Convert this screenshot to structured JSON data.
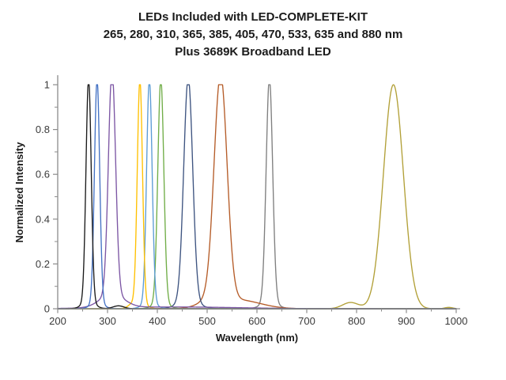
{
  "page": {
    "background": "#FFFFFF"
  },
  "chart_data": {
    "type": "line",
    "title_lines": [
      "LEDs Included with LED-COMPLETE-KIT",
      "265, 280, 310, 365, 385, 405, 470, 533, 635 and 880 nm",
      "Plus 3689K Broadband LED"
    ],
    "xlabel": "Wavelength (nm)",
    "ylabel": "Normalized Intensity",
    "xlim": [
      200,
      1000
    ],
    "ylim": [
      0,
      1
    ],
    "grid": false,
    "legend_position": "none",
    "axis_color": "#8C8C8C",
    "tick_label_color": "#3A3A3A",
    "x_major_ticks": [
      200,
      300,
      400,
      500,
      600,
      700,
      800,
      900,
      1000
    ],
    "x_minor_ticks": [
      250,
      350,
      450,
      550,
      650,
      750,
      850,
      950
    ],
    "y_major_ticks": [
      {
        "value": 0,
        "label": "0"
      },
      {
        "value": 0.2,
        "label": "0.2"
      },
      {
        "value": 0.4,
        "label": "0.4"
      },
      {
        "value": 0.6,
        "label": "0.6"
      },
      {
        "value": 0.8,
        "label": "0.8"
      },
      {
        "value": 1,
        "label": "1"
      }
    ],
    "y_minor_ticks": [
      0.1,
      0.3,
      0.5,
      0.7,
      0.9
    ],
    "series": [
      {
        "name": "265 nm LED",
        "nominal_nm": 265,
        "peak_intensity": 1.0,
        "fwhm_nm": 12,
        "color": "#1A1A1A",
        "components": [
          [
            262,
            5.2,
            1.0
          ],
          [
            262,
            13,
            0.03
          ],
          [
            322,
            11,
            0.013
          ]
        ]
      },
      {
        "name": "280 nm LED",
        "nominal_nm": 280,
        "peak_intensity": 1.0,
        "fwhm_nm": 12,
        "color": "#4472C4",
        "components": [
          [
            279,
            5.2,
            1.0
          ],
          [
            279,
            13,
            0.025
          ]
        ]
      },
      {
        "name": "310 nm LED",
        "nominal_nm": 310,
        "peak_intensity": 1.0,
        "fwhm_nm": 17,
        "color": "#7C56A4",
        "components": [
          [
            309,
            7.2,
            1.0
          ],
          [
            309,
            24,
            0.06
          ],
          [
            430,
            130,
            0.008
          ]
        ]
      },
      {
        "name": "365 nm LED",
        "nominal_nm": 365,
        "peak_intensity": 1.0,
        "fwhm_nm": 12,
        "color": "#FFC000",
        "components": [
          [
            365,
            5.2,
            1.0
          ],
          [
            349,
            8,
            0.015
          ],
          [
            365,
            13,
            0.02
          ]
        ]
      },
      {
        "name": "385 nm LED",
        "nominal_nm": 385,
        "peak_intensity": 1.0,
        "fwhm_nm": 13,
        "color": "#5B9BD5",
        "components": [
          [
            384,
            5.5,
            1.0
          ],
          [
            384,
            14,
            0.025
          ]
        ]
      },
      {
        "name": "405 nm LED",
        "nominal_nm": 405,
        "peak_intensity": 1.0,
        "fwhm_nm": 14,
        "color": "#70AD47",
        "components": [
          [
            407,
            6.0,
            1.0
          ],
          [
            407,
            15,
            0.025
          ]
        ]
      },
      {
        "name": "470 nm LED",
        "nominal_nm": 470,
        "peak_intensity": 1.0,
        "fwhm_nm": 21,
        "color": "#3E5480",
        "components": [
          [
            462,
            9.0,
            1.0
          ],
          [
            462,
            22,
            0.03
          ]
        ]
      },
      {
        "name": "533 nm LED",
        "nominal_nm": 533,
        "peak_intensity": 1.0,
        "fwhm_nm": 31,
        "color": "#B55C28",
        "components": [
          [
            527,
            13,
            1.0
          ],
          [
            560,
            45,
            0.04
          ],
          [
            505,
            22,
            0.025
          ]
        ]
      },
      {
        "name": "635 nm LED",
        "nominal_nm": 635,
        "peak_intensity": 1.0,
        "fwhm_nm": 15,
        "color": "#7F7F7F",
        "components": [
          [
            625,
            6.5,
            1.0
          ],
          [
            625,
            16,
            0.03
          ]
        ]
      },
      {
        "name": "880 nm LED",
        "nominal_nm": 880,
        "peak_intensity": 1.0,
        "fwhm_nm": 47,
        "color": "#B2A038",
        "components": [
          [
            874,
            20,
            1.0
          ],
          [
            788,
            16,
            0.028
          ],
          [
            985,
            8,
            0.006
          ]
        ]
      }
    ]
  }
}
